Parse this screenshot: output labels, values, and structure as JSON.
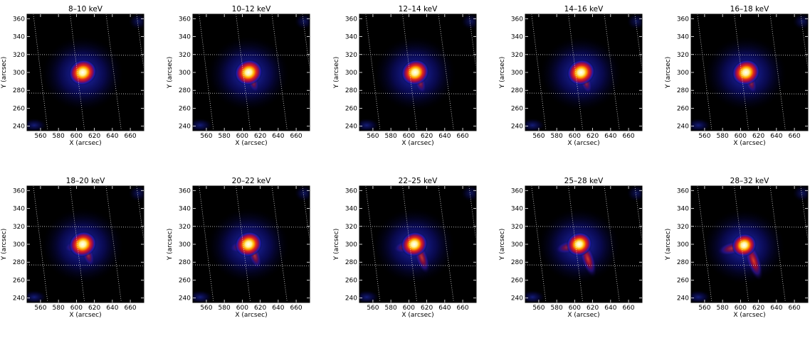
{
  "chart_data": [
    {
      "type": "heatmap",
      "title": "8–10 keV",
      "xlabel": "X (arcsec)",
      "ylabel": "Y (arcsec)",
      "xlim": [
        545,
        675
      ],
      "ylim": [
        235,
        365
      ],
      "xticks": [
        "560",
        "580",
        "600",
        "620",
        "640",
        "660"
      ],
      "yticks": [
        "240",
        "260",
        "280",
        "300",
        "320",
        "340",
        "360"
      ],
      "source": {
        "x": 607,
        "y": 300
      },
      "tail_strength": 0.0,
      "lobe_strength": 0.0
    },
    {
      "type": "heatmap",
      "title": "10–12 keV",
      "xlabel": "X (arcsec)",
      "ylabel": "Y (arcsec)",
      "xlim": [
        545,
        675
      ],
      "ylim": [
        235,
        365
      ],
      "xticks": [
        "560",
        "580",
        "600",
        "620",
        "640",
        "660"
      ],
      "yticks": [
        "240",
        "260",
        "280",
        "300",
        "320",
        "340",
        "360"
      ],
      "source": {
        "x": 607,
        "y": 300
      },
      "tail_strength": 0.1,
      "lobe_strength": 0.0
    },
    {
      "type": "heatmap",
      "title": "12–14 keV",
      "xlabel": "X (arcsec)",
      "ylabel": "Y (arcsec)",
      "xlim": [
        545,
        675
      ],
      "ylim": [
        235,
        365
      ],
      "xticks": [
        "560",
        "580",
        "600",
        "620",
        "640",
        "660"
      ],
      "yticks": [
        "240",
        "260",
        "280",
        "300",
        "320",
        "340",
        "360"
      ],
      "source": {
        "x": 607,
        "y": 300
      },
      "tail_strength": 0.15,
      "lobe_strength": 0.0
    },
    {
      "type": "heatmap",
      "title": "14–16 keV",
      "xlabel": "X (arcsec)",
      "ylabel": "Y (arcsec)",
      "xlim": [
        545,
        675
      ],
      "ylim": [
        235,
        365
      ],
      "xticks": [
        "560",
        "580",
        "600",
        "620",
        "640",
        "660"
      ],
      "yticks": [
        "240",
        "260",
        "280",
        "300",
        "320",
        "340",
        "360"
      ],
      "source": {
        "x": 607,
        "y": 300
      },
      "tail_strength": 0.15,
      "lobe_strength": 0.0
    },
    {
      "type": "heatmap",
      "title": "16–18 keV",
      "xlabel": "X (arcsec)",
      "ylabel": "Y (arcsec)",
      "xlim": [
        545,
        675
      ],
      "ylim": [
        235,
        365
      ],
      "xticks": [
        "560",
        "580",
        "600",
        "620",
        "640",
        "660"
      ],
      "yticks": [
        "240",
        "260",
        "280",
        "300",
        "320",
        "340",
        "360"
      ],
      "source": {
        "x": 606,
        "y": 300
      },
      "tail_strength": 0.15,
      "lobe_strength": 0.0
    },
    {
      "type": "heatmap",
      "title": "18–20 keV",
      "xlabel": "X (arcsec)",
      "ylabel": "Y (arcsec)",
      "xlim": [
        545,
        675
      ],
      "ylim": [
        235,
        365
      ],
      "xticks": [
        "560",
        "580",
        "600",
        "620",
        "640",
        "660"
      ],
      "yticks": [
        "240",
        "260",
        "280",
        "300",
        "320",
        "340",
        "360"
      ],
      "source": {
        "x": 607,
        "y": 300
      },
      "tail_strength": 0.2,
      "lobe_strength": 0.05
    },
    {
      "type": "heatmap",
      "title": "20–22 keV",
      "xlabel": "X (arcsec)",
      "ylabel": "Y (arcsec)",
      "xlim": [
        545,
        675
      ],
      "ylim": [
        235,
        365
      ],
      "xticks": [
        "560",
        "580",
        "600",
        "620",
        "640",
        "660"
      ],
      "yticks": [
        "240",
        "260",
        "280",
        "300",
        "320",
        "340",
        "360"
      ],
      "source": {
        "x": 607,
        "y": 300
      },
      "tail_strength": 0.3,
      "lobe_strength": 0.1
    },
    {
      "type": "heatmap",
      "title": "22–25 keV",
      "xlabel": "X (arcsec)",
      "ylabel": "Y (arcsec)",
      "xlim": [
        545,
        675
      ],
      "ylim": [
        235,
        365
      ],
      "xticks": [
        "560",
        "580",
        "600",
        "620",
        "640",
        "660"
      ],
      "yticks": [
        "240",
        "260",
        "280",
        "300",
        "320",
        "340",
        "360"
      ],
      "source": {
        "x": 606,
        "y": 300
      },
      "tail_strength": 0.5,
      "lobe_strength": 0.2
    },
    {
      "type": "heatmap",
      "title": "25–28 keV",
      "xlabel": "X (arcsec)",
      "ylabel": "Y (arcsec)",
      "xlim": [
        545,
        675
      ],
      "ylim": [
        235,
        365
      ],
      "xticks": [
        "560",
        "580",
        "600",
        "620",
        "640",
        "660"
      ],
      "yticks": [
        "240",
        "260",
        "280",
        "300",
        "320",
        "340",
        "360"
      ],
      "source": {
        "x": 605,
        "y": 300
      },
      "tail_strength": 0.65,
      "lobe_strength": 0.4
    },
    {
      "type": "heatmap",
      "title": "28–32 keV",
      "xlabel": "X (arcsec)",
      "ylabel": "Y (arcsec)",
      "xlim": [
        545,
        675
      ],
      "ylim": [
        235,
        365
      ],
      "xticks": [
        "560",
        "580",
        "600",
        "620",
        "640",
        "660"
      ],
      "yticks": [
        "240",
        "260",
        "280",
        "300",
        "320",
        "340",
        "360"
      ],
      "source": {
        "x": 604,
        "y": 299
      },
      "tail_strength": 0.75,
      "lobe_strength": 0.55
    }
  ]
}
